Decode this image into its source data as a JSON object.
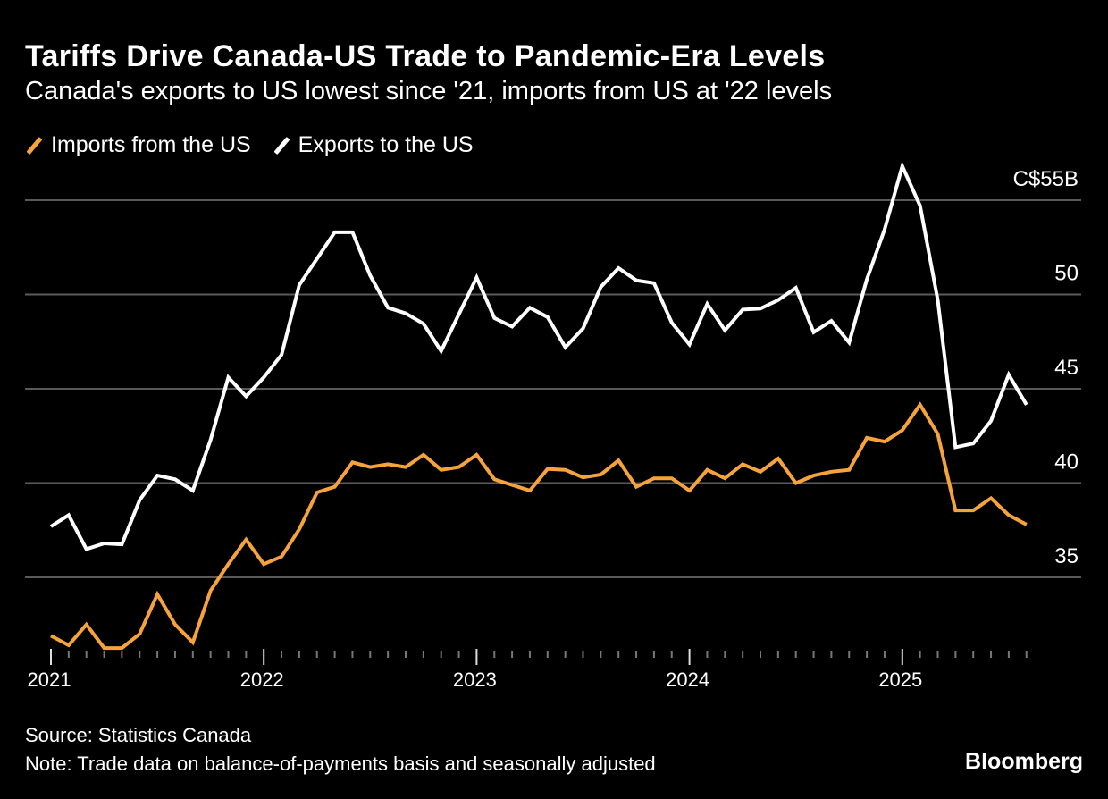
{
  "title": "Tariffs Drive Canada-US Trade to Pandemic-Era Levels",
  "subtitle": "Canada's exports to US lowest since '21, imports from US at '22 levels",
  "source": "Source: Statistics Canada",
  "note": "Note: Trade data on balance-of-payments basis and seasonally adjusted",
  "brand": "Bloomberg",
  "chart_data": {
    "type": "line",
    "title": "Tariffs Drive Canada-US Trade to Pandemic-Era Levels",
    "x_start": "2021-01",
    "x_frequency": "monthly",
    "x_tick_labels": [
      "2021",
      "2022",
      "2023",
      "2024",
      "2025"
    ],
    "y_tick_labels": [
      "C$55B",
      "50",
      "45",
      "40",
      "35"
    ],
    "y_ticks": [
      55,
      50,
      45,
      40,
      35
    ],
    "ylim": [
      30.8,
      57.5
    ],
    "y_axis_position": "right",
    "grid": true,
    "legend_position": "top-left",
    "series": [
      {
        "name": "Imports from the US",
        "color": "#f5a33a",
        "values": [
          31.9,
          31.4,
          32.5,
          31.25,
          31.25,
          32.0,
          34.1,
          32.5,
          31.55,
          34.3,
          35.7,
          37.0,
          35.7,
          36.1,
          37.55,
          39.5,
          39.8,
          41.1,
          40.85,
          41.0,
          40.85,
          41.5,
          40.7,
          40.85,
          41.5,
          40.2,
          39.9,
          39.6,
          40.75,
          40.7,
          40.3,
          40.45,
          41.2,
          39.8,
          40.25,
          40.25,
          39.6,
          40.7,
          40.25,
          41.0,
          40.6,
          41.3,
          40.0,
          40.4,
          40.6,
          40.7,
          42.4,
          42.2,
          42.8,
          44.15,
          42.6,
          38.55,
          38.55,
          39.2,
          38.3,
          37.8
        ]
      },
      {
        "name": "Exports to the US",
        "color": "#ffffff",
        "values": [
          37.7,
          38.3,
          36.5,
          36.8,
          36.75,
          39.1,
          40.4,
          40.2,
          39.6,
          42.3,
          45.6,
          44.6,
          45.6,
          46.8,
          50.5,
          51.9,
          53.3,
          53.3,
          51.0,
          49.3,
          49.0,
          48.45,
          47.0,
          48.95,
          50.9,
          48.75,
          48.3,
          49.3,
          48.8,
          47.2,
          48.2,
          50.4,
          51.4,
          50.75,
          50.6,
          48.5,
          47.35,
          49.5,
          48.1,
          49.2,
          49.25,
          49.7,
          50.35,
          48.0,
          48.6,
          47.45,
          50.8,
          53.45,
          56.8,
          54.7,
          49.7,
          41.9,
          42.1,
          43.3,
          45.75,
          44.15
        ]
      }
    ]
  }
}
